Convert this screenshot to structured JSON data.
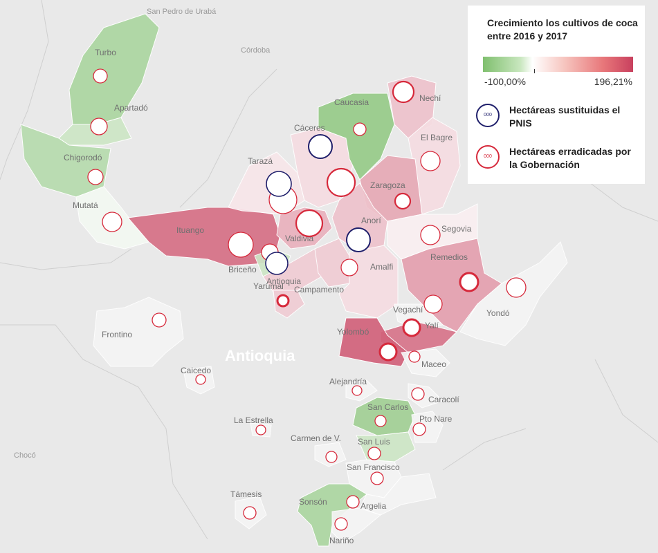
{
  "legend": {
    "title": "Crecimiento los cultivos de coca entre 2016 y 2017",
    "min_label": "-100,00%",
    "max_label": "196,21%",
    "pnis_label": "Hectáreas sustituidas el PNIS",
    "gob_label": "Hectáreas erradicadas por la Gobernación",
    "pnis_circle_text": "000",
    "gob_circle_text": "000",
    "pnis_color": "#1f1f6b",
    "gob_color": "#d6293b",
    "gradient_colors": [
      "#7fbf6e",
      "#ffffff",
      "#c8405e"
    ]
  },
  "department_label": "Antioquia",
  "region_labels": [
    "San Pedro de Urabá",
    "Córdoba",
    "Chocó"
  ],
  "municipalities": [
    {
      "name": "Turbo",
      "pct": -0.7
    },
    {
      "name": "Apartadó",
      "pct": -0.4
    },
    {
      "name": "Chigorodó",
      "pct": -0.6
    },
    {
      "name": "Mutatá",
      "pct": -0.05
    },
    {
      "name": "Ituango",
      "pct": 1.55
    },
    {
      "name": "Cáceres",
      "pct": 0.3
    },
    {
      "name": "Caucasia",
      "pct": -0.9
    },
    {
      "name": "Nechí",
      "pct": 0.6
    },
    {
      "name": "El Bagre",
      "pct": 0.3
    },
    {
      "name": "Zaragoza",
      "pct": 0.9
    },
    {
      "name": "Tarazá",
      "pct": 0.2
    },
    {
      "name": "Anorí",
      "pct": 0.6
    },
    {
      "name": "Segovia",
      "pct": 0.1
    },
    {
      "name": "Valdivia",
      "pct": 0.8
    },
    {
      "name": "Briceño",
      "pct": -0.4
    },
    {
      "name": "Yarumal",
      "pct": 0.5
    },
    {
      "name": "Campamento",
      "pct": 0.5
    },
    {
      "name": "Amalfi",
      "pct": 0.3
    },
    {
      "name": "Remedios",
      "pct": 1.0
    },
    {
      "name": "Yondó",
      "pct": -0.03
    },
    {
      "name": "Vegachí",
      "pct": 0.0
    },
    {
      "name": "Yalí",
      "pct": 1.5
    },
    {
      "name": "Yolombó",
      "pct": 1.7
    },
    {
      "name": "Frontino",
      "pct": -0.02
    },
    {
      "name": "Maceo",
      "pct": -0.02
    },
    {
      "name": "Caicedo",
      "pct": -0.02
    },
    {
      "name": "Alejandría",
      "pct": -0.02
    },
    {
      "name": "Caracolí",
      "pct": -0.02
    },
    {
      "name": "San Carlos",
      "pct": -0.8
    },
    {
      "name": "La Estrella",
      "pct": -0.02
    },
    {
      "name": "Pto Nare",
      "pct": -0.02
    },
    {
      "name": "Carmen de V.",
      "pct": -0.02
    },
    {
      "name": "San Luis",
      "pct": -0.4
    },
    {
      "name": "San Francisco",
      "pct": -0.02
    },
    {
      "name": "Támesis",
      "pct": -0.02
    },
    {
      "name": "Sonsón",
      "pct": -0.7
    },
    {
      "name": "Argelia",
      "pct": -0.02
    },
    {
      "name": "Nariño",
      "pct": -0.02
    },
    {
      "name": "Antioquia",
      "pct": 0.5
    }
  ]
}
